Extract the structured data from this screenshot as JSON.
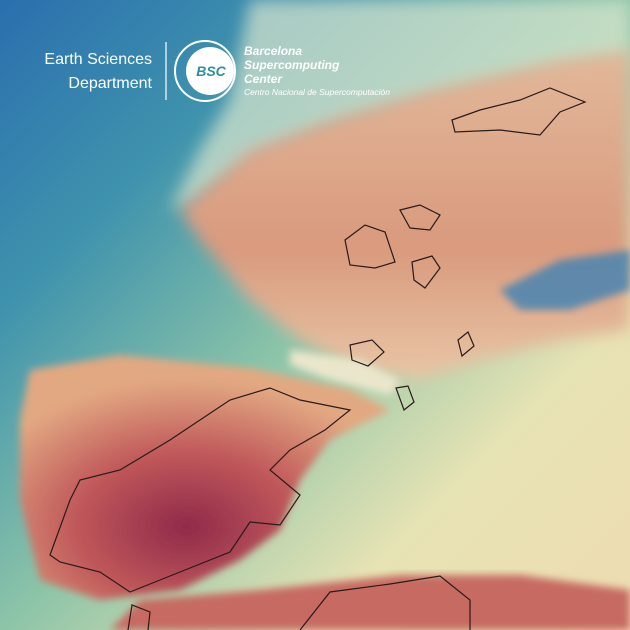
{
  "logo": {
    "department": [
      "Earth Sciences",
      "Department"
    ],
    "mark": "BSC",
    "center": [
      "Barcelona",
      "Supercomputing",
      "Center"
    ],
    "subtitle": "Centro Nacional de Supercomputación"
  }
}
